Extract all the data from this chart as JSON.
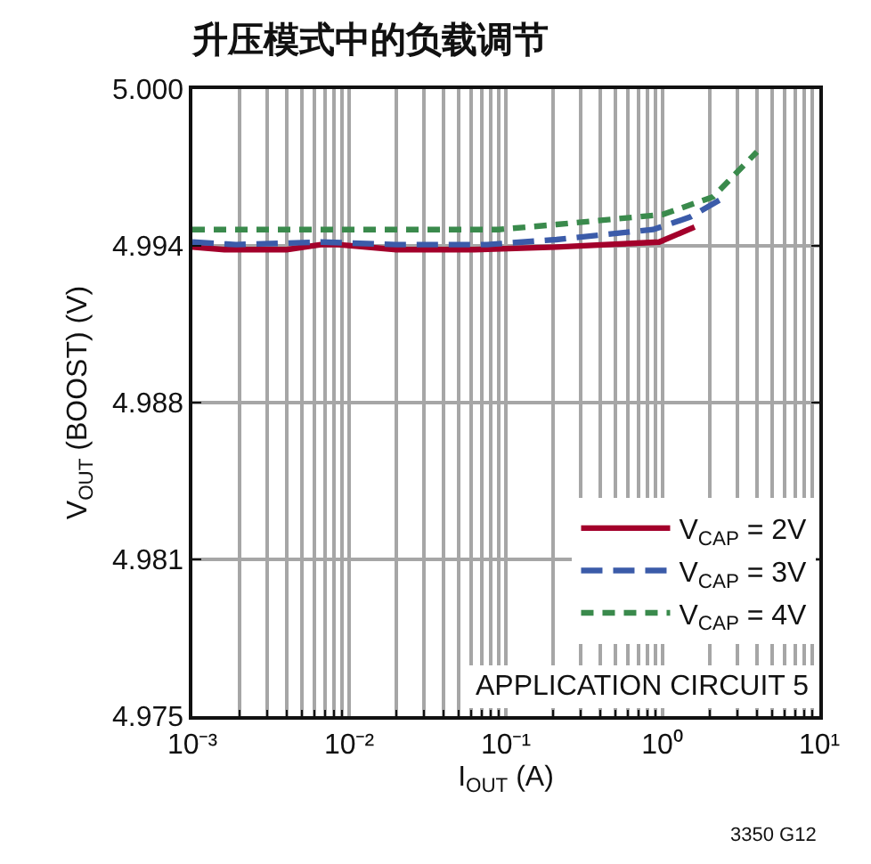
{
  "chart_data": {
    "type": "line",
    "title": "升压模式中的负载调节",
    "xlabel": "I$_{OUT}$ (A)",
    "ylabel": "V$_{OUT}$ (BOOST) (V)",
    "log": "x",
    "xlim": [
      0.001,
      10
    ],
    "xticks": [
      {
        "value": 0.001,
        "label": "10⁻³"
      },
      {
        "value": 0.01,
        "label": "10⁻²"
      },
      {
        "value": 0.1,
        "label": "10⁻¹"
      },
      {
        "value": 1,
        "label": "10⁰"
      },
      {
        "value": 10,
        "label": "10¹"
      }
    ],
    "ylim": [
      4.975,
      5.0
    ],
    "yticks": [
      4.975,
      {
        "value": 4.98125,
        "label": "4.981"
      },
      {
        "value": 4.9875,
        "label": "4.988"
      },
      {
        "value": 4.99375,
        "label": "4.994"
      },
      {
        "value": 5.0,
        "label": "5.000"
      }
    ],
    "grid": true,
    "legend": "bottom right",
    "series": [
      {
        "name": "V$_{CAP}$ = 2V",
        "color": "#a3002b",
        "line_style": "solid",
        "x": [
          0.001,
          0.0016,
          0.004,
          0.0066,
          0.0085,
          0.02,
          0.063,
          0.21,
          0.95,
          1.6
        ],
        "values": [
          4.9937,
          4.9936,
          4.9936,
          4.9938,
          4.9938,
          4.9936,
          4.9936,
          4.9937,
          4.9939,
          4.9945
        ]
      },
      {
        "name": "V$_{CAP}$ = 3V",
        "color": "#3b5ba9",
        "line_style": "dashed",
        "x": [
          0.001,
          0.0019,
          0.0066,
          0.02,
          0.076,
          0.21,
          0.87,
          1.5,
          2.5
        ],
        "values": [
          4.9939,
          4.9938,
          4.9939,
          4.9938,
          4.9938,
          4.994,
          4.9944,
          4.9949,
          4.9957
        ]
      },
      {
        "name": "V$_{CAP}$ = 4V",
        "color": "#3a8a4c",
        "line_style": "dashed",
        "x": [
          0.001,
          0.0047,
          0.022,
          0.09,
          0.21,
          1.0,
          2.1,
          4.0
        ],
        "values": [
          4.9944,
          4.9944,
          4.9944,
          4.9944,
          4.9946,
          4.995,
          4.9957,
          4.9975
        ]
      }
    ],
    "annotations": [
      "APPLICATION CIRCUIT 5",
      "3350 G12"
    ]
  }
}
